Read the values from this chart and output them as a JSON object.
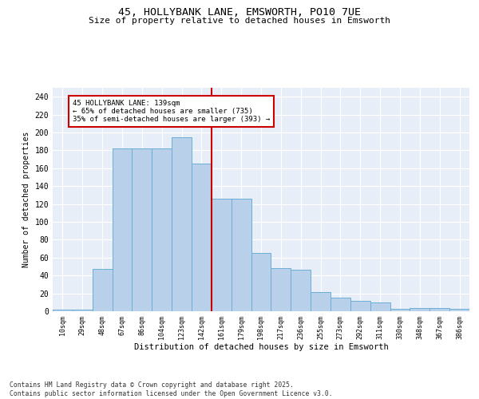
{
  "title": "45, HOLLYBANK LANE, EMSWORTH, PO10 7UE",
  "subtitle": "Size of property relative to detached houses in Emsworth",
  "xlabel": "Distribution of detached houses by size in Emsworth",
  "ylabel": "Number of detached properties",
  "categories": [
    "10sqm",
    "29sqm",
    "48sqm",
    "67sqm",
    "86sqm",
    "104sqm",
    "123sqm",
    "142sqm",
    "161sqm",
    "179sqm",
    "198sqm",
    "217sqm",
    "236sqm",
    "255sqm",
    "273sqm",
    "292sqm",
    "311sqm",
    "330sqm",
    "348sqm",
    "367sqm",
    "386sqm"
  ],
  "values": [
    2,
    2,
    47,
    182,
    182,
    182,
    195,
    165,
    126,
    126,
    65,
    48,
    46,
    21,
    15,
    12,
    10,
    3,
    4,
    4,
    3
  ],
  "bar_color": "#B8D0EA",
  "bar_edge_color": "#6BAED6",
  "vline_x": 7.5,
  "vline_color": "#CC0000",
  "annotation_text": "45 HOLLYBANK LANE: 139sqm\n← 65% of detached houses are smaller (735)\n35% of semi-detached houses are larger (393) →",
  "annotation_box_color": "#CC0000",
  "ylim": [
    0,
    250
  ],
  "yticks": [
    0,
    20,
    40,
    60,
    80,
    100,
    120,
    140,
    160,
    180,
    200,
    220,
    240
  ],
  "bg_color": "#E8EEF7",
  "footnote": "Contains HM Land Registry data © Crown copyright and database right 2025.\nContains public sector information licensed under the Open Government Licence v3.0."
}
